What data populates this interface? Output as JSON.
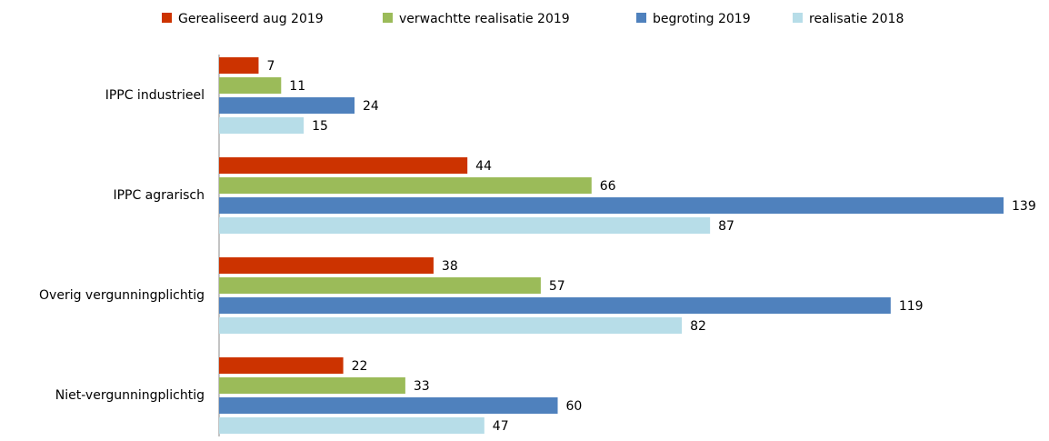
{
  "chart_data": {
    "type": "hbar",
    "categories": [
      "IPPC industrieel",
      "IPPC agrarisch",
      "Overig vergunningplichtig",
      "Niet-vergunningplichtig"
    ],
    "series": [
      {
        "name": "Gerealiseerd aug 2019",
        "color": "#cc3300",
        "values": [
          7,
          44,
          38,
          22
        ]
      },
      {
        "name": "verwachtte realisatie 2019",
        "color": "#9bbb59",
        "values": [
          11,
          66,
          57,
          33
        ]
      },
      {
        "name": "begroting 2019",
        "color": "#4f81bd",
        "values": [
          24,
          139,
          119,
          60
        ]
      },
      {
        "name": "realisatie 2018",
        "color": "#b7dde8",
        "values": [
          15,
          87,
          82,
          47
        ]
      }
    ],
    "legend": "top"
  }
}
